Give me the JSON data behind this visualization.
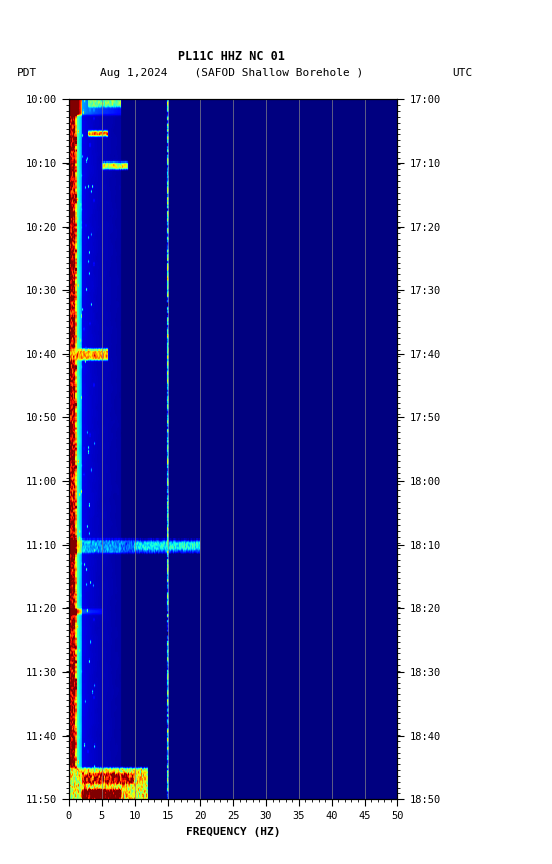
{
  "title_line1": "PL11C HHZ NC 01",
  "title_line2": "Aug 1,2024    (SAFOD Shallow Borehole )",
  "left_label": "PDT",
  "right_label": "UTC",
  "xlabel": "FREQUENCY (HZ)",
  "freq_min": 0,
  "freq_max": 50,
  "yticks_pdt": [
    "10:00",
    "10:10",
    "10:20",
    "10:30",
    "10:40",
    "10:50",
    "11:00",
    "11:10",
    "11:20",
    "11:30",
    "11:40",
    "11:50"
  ],
  "yticks_utc": [
    "17:00",
    "17:10",
    "17:20",
    "17:30",
    "17:40",
    "17:50",
    "18:00",
    "18:10",
    "18:20",
    "18:30",
    "18:40",
    "18:50"
  ],
  "xticks": [
    0,
    5,
    10,
    15,
    20,
    25,
    30,
    35,
    40,
    45,
    50
  ],
  "vline_freqs": [
    5.0,
    10.0,
    15.0,
    20.0,
    25.0,
    30.0,
    35.0,
    40.0,
    45.0
  ],
  "background_color": "#ffffff",
  "seed": 42,
  "n_times": 660,
  "n_freqs": 500
}
